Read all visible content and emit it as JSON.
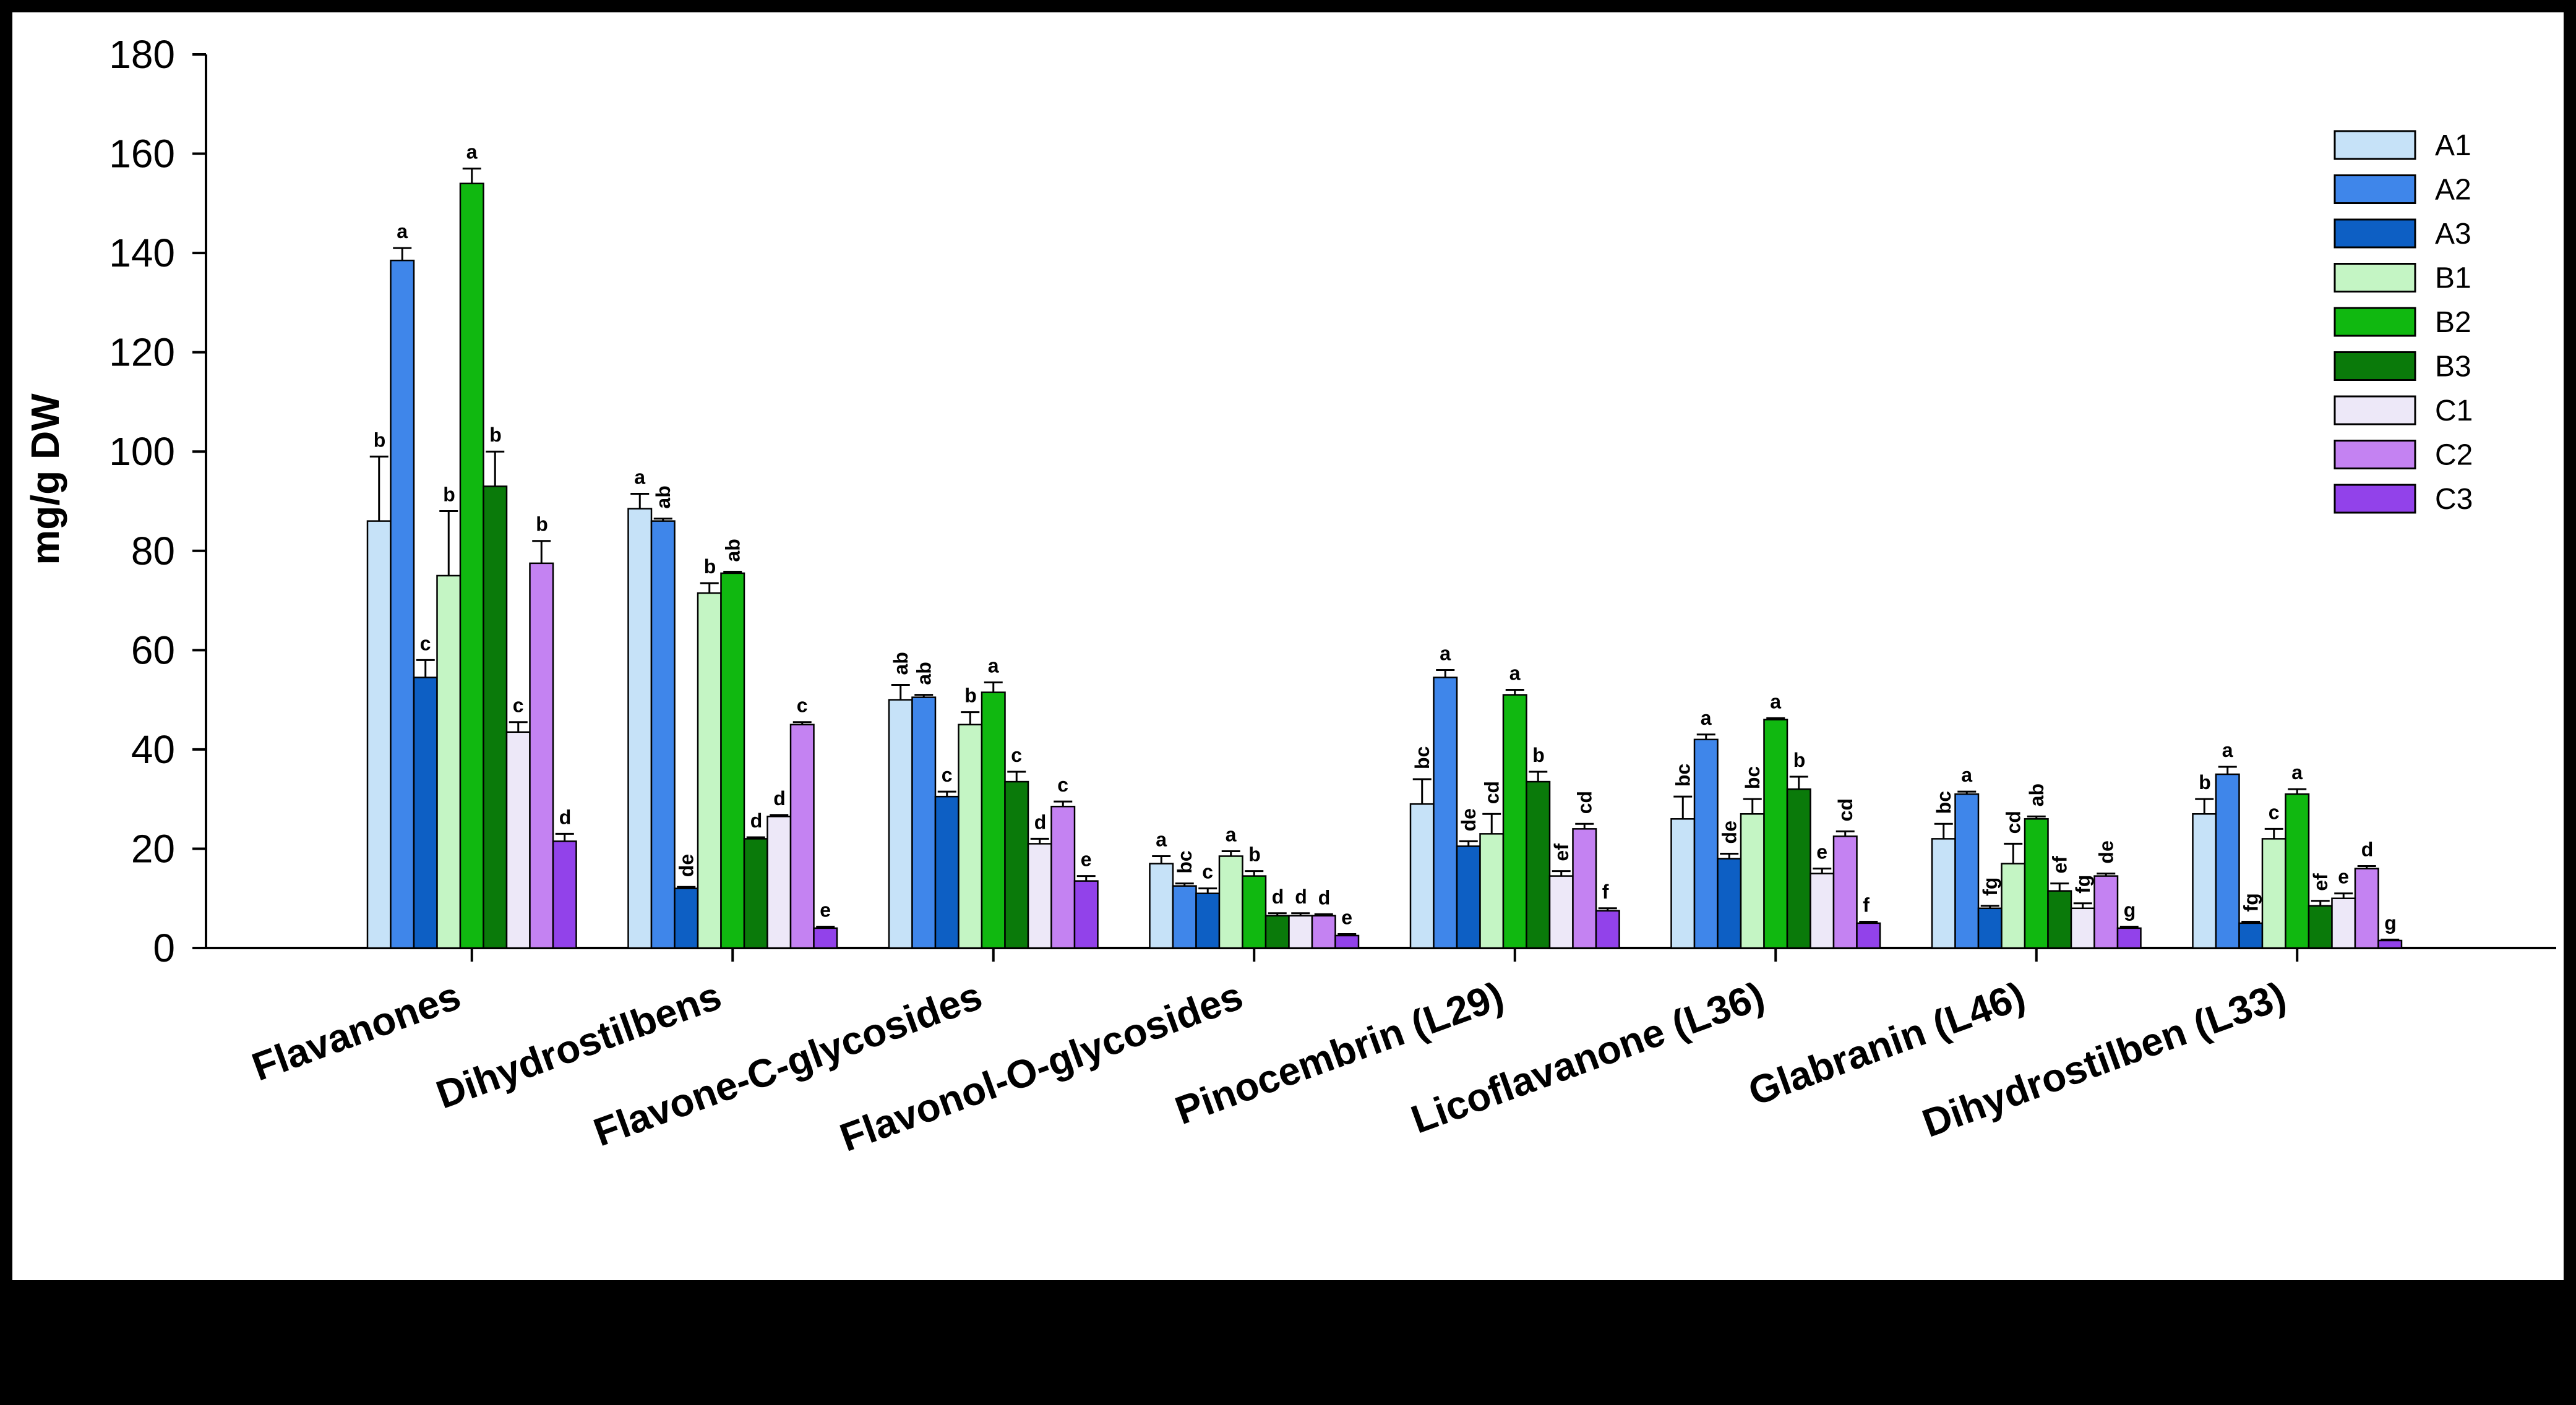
{
  "chart_data": {
    "type": "bar",
    "title": "",
    "xlabel": "",
    "ylabel": "mg/g DW",
    "ylim": [
      0,
      180
    ],
    "yticks": [
      0,
      20,
      40,
      60,
      80,
      100,
      120,
      140,
      160,
      180
    ],
    "legend_position": "top-right",
    "grid": false,
    "categories": [
      "Flavanones",
      "Dihydrostilbens",
      "Flavone-C-glycosides",
      "Flavonol-O-glycosides",
      "Pinocembrin (L29)",
      "Licoflavanone (L36)",
      "Glabranin (L46)",
      "Dihydrostilben (L33)"
    ],
    "series": [
      {
        "name": "A1",
        "color": "#c6e2f8",
        "values": [
          86,
          88.5,
          50,
          17,
          29,
          26,
          22,
          27
        ],
        "errors": [
          13,
          3,
          3,
          1.5,
          5,
          4.5,
          3,
          3
        ],
        "labels": [
          "b",
          "a",
          "ab",
          "a",
          "bc",
          "bc",
          "bc",
          "b"
        ]
      },
      {
        "name": "A2",
        "color": "#3f86ea",
        "values": [
          138.5,
          86,
          50.5,
          12.5,
          54.5,
          42,
          31,
          35
        ],
        "errors": [
          2.5,
          0.5,
          0.5,
          0.5,
          1.5,
          1,
          0.5,
          1.5
        ],
        "labels": [
          "a",
          "ab",
          "ab",
          "bc",
          "a",
          "a",
          "a",
          "a"
        ]
      },
      {
        "name": "A3",
        "color": "#0d5fc4",
        "values": [
          54.5,
          12,
          30.5,
          11,
          20.5,
          18,
          8,
          5
        ],
        "errors": [
          3.5,
          0.3,
          1,
          1,
          1,
          1,
          0.5,
          0.3
        ],
        "labels": [
          "c",
          "de",
          "c",
          "c",
          "de",
          "de",
          "fg",
          "fg"
        ]
      },
      {
        "name": "B1",
        "color": "#c4f5c4",
        "values": [
          75,
          71.5,
          45,
          18.5,
          23,
          27,
          17,
          22
        ],
        "errors": [
          13,
          2,
          2.5,
          1,
          4,
          3,
          4,
          2
        ],
        "labels": [
          "b",
          "b",
          "b",
          "a",
          "cd",
          "bc",
          "cd",
          "c"
        ]
      },
      {
        "name": "B2",
        "color": "#10b810",
        "values": [
          154,
          75.5,
          51.5,
          14.5,
          51,
          46,
          26,
          31
        ],
        "errors": [
          3,
          0.3,
          2,
          1,
          1,
          0.3,
          0.5,
          1
        ],
        "labels": [
          "a",
          "ab",
          "a",
          "b",
          "a",
          "a",
          "ab",
          "a"
        ]
      },
      {
        "name": "B3",
        "color": "#0a7a0a",
        "values": [
          93,
          22,
          33.5,
          6.5,
          33.5,
          32,
          11.5,
          8.5
        ],
        "errors": [
          7,
          0.3,
          2,
          0.5,
          2,
          2.5,
          1.5,
          1
        ],
        "labels": [
          "b",
          "d",
          "c",
          "d",
          "b",
          "b",
          "ef",
          "ef"
        ]
      },
      {
        "name": "C1",
        "color": "#ede8f8",
        "values": [
          43.5,
          26.5,
          21,
          6.5,
          14.5,
          15,
          8,
          10
        ],
        "errors": [
          2,
          0.3,
          1,
          0.5,
          1,
          1,
          1,
          1
        ],
        "labels": [
          "c",
          "d",
          "d",
          "d",
          "ef",
          "e",
          "fg",
          "e"
        ]
      },
      {
        "name": "C2",
        "color": "#c482f2",
        "values": [
          77.5,
          45,
          28.5,
          6.5,
          24,
          22.5,
          14.5,
          16
        ],
        "errors": [
          4.5,
          0.5,
          1,
          0.3,
          1,
          1,
          0.5,
          0.5
        ],
        "labels": [
          "b",
          "c",
          "c",
          "d",
          "cd",
          "cd",
          "de",
          "d"
        ]
      },
      {
        "name": "C3",
        "color": "#9242ea",
        "values": [
          21.5,
          4,
          13.5,
          2.5,
          7.5,
          5,
          4,
          1.5
        ],
        "errors": [
          1.5,
          0.3,
          1,
          0.3,
          0.5,
          0.3,
          0.3,
          0.2
        ],
        "labels": [
          "d",
          "e",
          "e",
          "e",
          "f",
          "f",
          "g",
          "g"
        ]
      }
    ]
  }
}
